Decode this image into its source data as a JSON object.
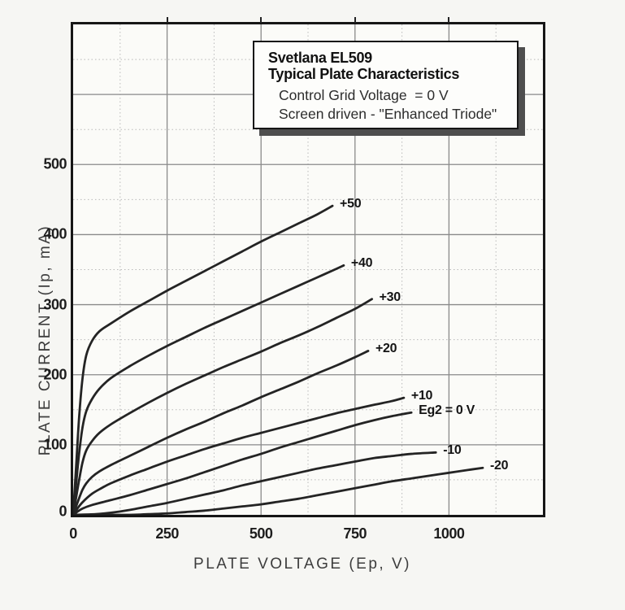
{
  "title_box": {
    "title_line1": "Svetlana EL509",
    "title_line2": "Typical Plate Characteristics",
    "subtitle_line1": "Control Grid Voltage  = 0 V",
    "subtitle_line2": "Screen driven - \"Enhanced Triode\""
  },
  "chart_data": {
    "type": "line",
    "title": "Svetlana EL509 Typical Plate Characteristics",
    "subtitle": "Control Grid Voltage = 0 V, Screen driven - \"Enhanced Triode\"",
    "xlabel": "PLATE VOLTAGE (Ep, V)",
    "ylabel": "PLATE CURRENT (Ip, mA)",
    "xlim": [
      0,
      1250
    ],
    "ylim": [
      0,
      700
    ],
    "x_ticks": [
      "0",
      "250",
      "500",
      "750",
      "1000"
    ],
    "x_tick_values": [
      0,
      250,
      500,
      750,
      1000
    ],
    "y_ticks": [
      "0",
      "100",
      "200",
      "300",
      "400",
      "500"
    ],
    "y_tick_values": [
      0,
      100,
      200,
      300,
      400,
      500
    ],
    "grid": {
      "visible": true,
      "major_x_step": 250,
      "minor_x_step": 125,
      "major_y_step": 100,
      "minor_y_step": 50
    },
    "legend_position": "inline-curve-labels",
    "curve_color": "#242424",
    "major_grid_color": "#8a8a8a",
    "minor_grid_color": "#b9b9b9",
    "series": [
      {
        "name": "Eg2 = +50 V",
        "label": "+50",
        "points": [
          [
            0,
            0
          ],
          [
            8,
            70
          ],
          [
            16,
            140
          ],
          [
            25,
            195
          ],
          [
            35,
            228
          ],
          [
            50,
            248
          ],
          [
            70,
            262
          ],
          [
            100,
            273
          ],
          [
            150,
            290
          ],
          [
            200,
            305
          ],
          [
            250,
            320
          ],
          [
            300,
            334
          ],
          [
            350,
            348
          ],
          [
            400,
            362
          ],
          [
            450,
            376
          ],
          [
            500,
            390
          ],
          [
            550,
            403
          ],
          [
            600,
            416
          ],
          [
            650,
            429
          ],
          [
            690,
            441
          ]
        ]
      },
      {
        "name": "Eg2 = +40 V",
        "label": "+40",
        "points": [
          [
            0,
            0
          ],
          [
            8,
            45
          ],
          [
            16,
            88
          ],
          [
            25,
            125
          ],
          [
            35,
            148
          ],
          [
            50,
            165
          ],
          [
            70,
            180
          ],
          [
            100,
            195
          ],
          [
            150,
            212
          ],
          [
            200,
            227
          ],
          [
            250,
            241
          ],
          [
            300,
            254
          ],
          [
            350,
            267
          ],
          [
            400,
            279
          ],
          [
            450,
            291
          ],
          [
            500,
            303
          ],
          [
            550,
            315
          ],
          [
            600,
            327
          ],
          [
            650,
            339
          ],
          [
            700,
            351
          ],
          [
            720,
            356
          ]
        ]
      },
      {
        "name": "Eg2 = +30 V",
        "label": "+30",
        "points": [
          [
            0,
            0
          ],
          [
            8,
            25
          ],
          [
            16,
            50
          ],
          [
            25,
            75
          ],
          [
            35,
            92
          ],
          [
            50,
            105
          ],
          [
            70,
            117
          ],
          [
            100,
            129
          ],
          [
            150,
            145
          ],
          [
            200,
            160
          ],
          [
            250,
            174
          ],
          [
            300,
            187
          ],
          [
            350,
            199
          ],
          [
            400,
            211
          ],
          [
            450,
            222
          ],
          [
            500,
            233
          ],
          [
            550,
            245
          ],
          [
            600,
            256
          ],
          [
            650,
            268
          ],
          [
            700,
            281
          ],
          [
            750,
            294
          ],
          [
            795,
            308
          ]
        ]
      },
      {
        "name": "Eg2 = +20 V",
        "label": "+20",
        "points": [
          [
            0,
            0
          ],
          [
            8,
            12
          ],
          [
            16,
            24
          ],
          [
            25,
            36
          ],
          [
            35,
            45
          ],
          [
            50,
            54
          ],
          [
            70,
            62
          ],
          [
            100,
            71
          ],
          [
            150,
            84
          ],
          [
            200,
            97
          ],
          [
            250,
            110
          ],
          [
            300,
            122
          ],
          [
            350,
            133
          ],
          [
            400,
            145
          ],
          [
            450,
            156
          ],
          [
            500,
            168
          ],
          [
            550,
            179
          ],
          [
            600,
            190
          ],
          [
            650,
            202
          ],
          [
            700,
            213
          ],
          [
            750,
            225
          ],
          [
            785,
            234
          ]
        ]
      },
      {
        "name": "Eg2 = +10 V",
        "label": "+10",
        "points": [
          [
            0,
            0
          ],
          [
            10,
            8
          ],
          [
            25,
            18
          ],
          [
            50,
            30
          ],
          [
            75,
            38
          ],
          [
            100,
            45
          ],
          [
            150,
            56
          ],
          [
            200,
            66
          ],
          [
            250,
            76
          ],
          [
            300,
            85
          ],
          [
            350,
            94
          ],
          [
            400,
            102
          ],
          [
            450,
            110
          ],
          [
            500,
            117
          ],
          [
            550,
            124
          ],
          [
            600,
            131
          ],
          [
            650,
            138
          ],
          [
            700,
            145
          ],
          [
            750,
            151
          ],
          [
            800,
            157
          ],
          [
            845,
            162
          ],
          [
            880,
            167
          ]
        ]
      },
      {
        "name": "Eg2 = 0 V",
        "label": "Eg2 = 0 V",
        "points": [
          [
            0,
            0
          ],
          [
            10,
            4
          ],
          [
            25,
            9
          ],
          [
            50,
            14
          ],
          [
            100,
            21
          ],
          [
            150,
            28
          ],
          [
            200,
            36
          ],
          [
            250,
            44
          ],
          [
            300,
            52
          ],
          [
            350,
            61
          ],
          [
            400,
            70
          ],
          [
            450,
            79
          ],
          [
            500,
            87
          ],
          [
            550,
            96
          ],
          [
            600,
            104
          ],
          [
            650,
            112
          ],
          [
            700,
            120
          ],
          [
            750,
            128
          ],
          [
            800,
            135
          ],
          [
            850,
            141
          ],
          [
            900,
            146
          ]
        ]
      },
      {
        "name": "Eg2 = -10 V",
        "label": "-10",
        "points": [
          [
            0,
            0
          ],
          [
            60,
            1
          ],
          [
            100,
            3
          ],
          [
            150,
            7
          ],
          [
            200,
            12
          ],
          [
            250,
            17
          ],
          [
            300,
            23
          ],
          [
            350,
            29
          ],
          [
            400,
            35
          ],
          [
            450,
            42
          ],
          [
            500,
            48
          ],
          [
            550,
            54
          ],
          [
            600,
            60
          ],
          [
            650,
            66
          ],
          [
            700,
            71
          ],
          [
            750,
            76
          ],
          [
            800,
            81
          ],
          [
            850,
            84
          ],
          [
            900,
            87
          ],
          [
            965,
            89
          ]
        ]
      },
      {
        "name": "Eg2 = -20 V",
        "label": "-20",
        "points": [
          [
            0,
            0
          ],
          [
            150,
            0
          ],
          [
            200,
            1
          ],
          [
            250,
            2
          ],
          [
            300,
            4
          ],
          [
            350,
            6
          ],
          [
            400,
            9
          ],
          [
            450,
            12
          ],
          [
            500,
            15
          ],
          [
            550,
            19
          ],
          [
            600,
            23
          ],
          [
            650,
            28
          ],
          [
            700,
            33
          ],
          [
            750,
            38
          ],
          [
            800,
            43
          ],
          [
            850,
            48
          ],
          [
            900,
            52
          ],
          [
            950,
            56
          ],
          [
            1000,
            60
          ],
          [
            1050,
            64
          ],
          [
            1090,
            67
          ]
        ]
      }
    ]
  }
}
